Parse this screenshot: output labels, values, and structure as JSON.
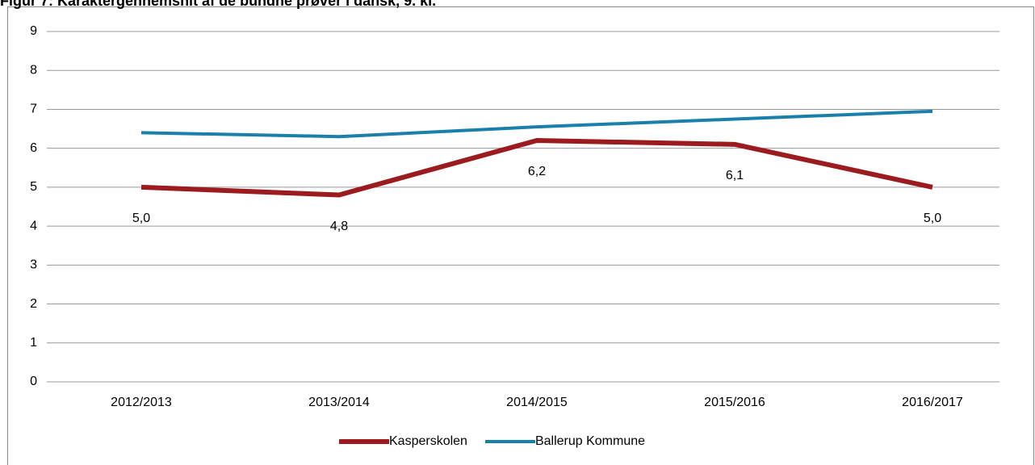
{
  "chart_data": {
    "type": "line",
    "title": "Figur 7: Karaktergennemsnit af de bundne prøver i dansk, 9. kl.",
    "categories": [
      "2012/2013",
      "2013/2014",
      "2014/2015",
      "2015/2016",
      "2016/2017"
    ],
    "series": [
      {
        "name": "Kasperskolen",
        "color": "#9b1b1e",
        "values": [
          5.0,
          4.8,
          6.2,
          6.1,
          5.0
        ],
        "value_labels": [
          "5,0",
          "4,8",
          "6,2",
          "6,1",
          "5,0"
        ]
      },
      {
        "name": "Ballerup Kommune",
        "color": "#1a7fab",
        "values": [
          6.4,
          6.3,
          6.55,
          6.75,
          6.95
        ]
      }
    ],
    "ylim": [
      0,
      9
    ],
    "yticks": [
      0,
      1,
      2,
      3,
      4,
      5,
      6,
      7,
      8,
      9
    ],
    "grid": true
  }
}
